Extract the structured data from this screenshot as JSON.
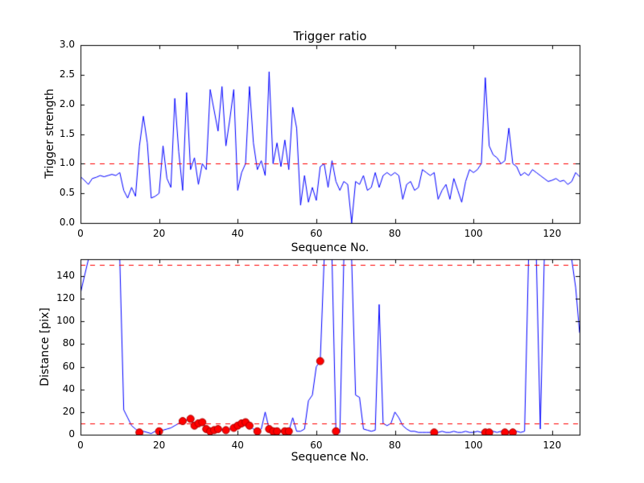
{
  "figure": {
    "background": "#ffffff",
    "line_color": "#0000ff",
    "dashed_color": "#ff0000",
    "marker_face": "#ff0000",
    "marker_edge": "#aa0000",
    "frame_color": "#000000"
  },
  "chart_data": [
    {
      "type": "line",
      "title": "Trigger ratio",
      "xlabel": "Sequence No.",
      "ylabel": "Trigger strength",
      "xlim": [
        0,
        127
      ],
      "ylim": [
        0,
        3.0
      ],
      "xticks": [
        0,
        20,
        40,
        60,
        80,
        100,
        120
      ],
      "xtick_labels": [
        "0",
        "20",
        "40",
        "60",
        "80",
        "100",
        "120"
      ],
      "yticks": [
        0.0,
        0.5,
        1.0,
        1.5,
        2.0,
        2.5,
        3.0
      ],
      "ytick_labels": [
        "0.0",
        "0.5",
        "1.0",
        "1.5",
        "2.0",
        "2.5",
        "3.0"
      ],
      "hlines": [
        1.0
      ],
      "legend": "none",
      "grid": false,
      "series": [
        {
          "name": "trigger-strength",
          "values": [
            0.78,
            0.72,
            0.65,
            0.75,
            0.77,
            0.8,
            0.78,
            0.8,
            0.82,
            0.8,
            0.85,
            0.55,
            0.42,
            0.6,
            0.45,
            1.3,
            1.8,
            1.35,
            0.42,
            0.45,
            0.5,
            1.3,
            0.75,
            0.6,
            2.1,
            1.2,
            0.55,
            2.2,
            0.9,
            1.1,
            0.65,
            1.0,
            0.9,
            2.25,
            1.9,
            1.55,
            2.3,
            1.3,
            1.75,
            2.25,
            0.55,
            0.85,
            1.0,
            2.3,
            1.35,
            0.9,
            1.05,
            0.8,
            2.55,
            1.0,
            1.35,
            0.95,
            1.4,
            0.9,
            1.95,
            1.6,
            0.3,
            0.8,
            0.35,
            0.6,
            0.38,
            0.95,
            1.0,
            0.6,
            1.05,
            0.7,
            0.55,
            0.7,
            0.65,
            0.0,
            0.7,
            0.65,
            0.8,
            0.55,
            0.6,
            0.85,
            0.6,
            0.8,
            0.85,
            0.8,
            0.85,
            0.8,
            0.4,
            0.65,
            0.7,
            0.55,
            0.6,
            0.9,
            0.85,
            0.8,
            0.85,
            0.4,
            0.55,
            0.65,
            0.4,
            0.75,
            0.55,
            0.35,
            0.7,
            0.9,
            0.85,
            0.9,
            1.0,
            2.45,
            1.3,
            1.15,
            1.1,
            1.0,
            1.05,
            1.6,
            1.0,
            0.95,
            0.8,
            0.85,
            0.8,
            0.9,
            0.85,
            0.8,
            0.75,
            0.7,
            0.72,
            0.75,
            0.7,
            0.72,
            0.65,
            0.7,
            0.85,
            0.78
          ]
        }
      ],
      "markers": []
    },
    {
      "type": "line",
      "title": "",
      "xlabel": "Sequence No.",
      "ylabel": "Distance [pix]",
      "xlim": [
        0,
        127
      ],
      "ylim": [
        0,
        155
      ],
      "xticks": [
        0,
        20,
        40,
        60,
        80,
        100,
        120
      ],
      "xtick_labels": [
        "0",
        "20",
        "40",
        "60",
        "80",
        "100",
        "120"
      ],
      "yticks": [
        0,
        20,
        40,
        60,
        80,
        100,
        120,
        140
      ],
      "ytick_labels": [
        "0",
        "20",
        "40",
        "60",
        "80",
        "100",
        "120",
        "140"
      ],
      "hlines": [
        150,
        10
      ],
      "legend": "none",
      "grid": false,
      "series": [
        {
          "name": "distance",
          "values": [
            125,
            140,
            155,
            155,
            155,
            155,
            155,
            155,
            155,
            155,
            155,
            22,
            15,
            8,
            5,
            2,
            3,
            2,
            1,
            3,
            3,
            4,
            5,
            6,
            8,
            10,
            12,
            13,
            14,
            8,
            10,
            11,
            5,
            3,
            4,
            5,
            4,
            4,
            5,
            6,
            8,
            10,
            11,
            8,
            5,
            3,
            5,
            20,
            5,
            3,
            3,
            3,
            3,
            3,
            15,
            3,
            3,
            5,
            30,
            35,
            60,
            65,
            155,
            155,
            155,
            3,
            2,
            155,
            155,
            155,
            35,
            33,
            5,
            4,
            3,
            4,
            115,
            10,
            8,
            10,
            20,
            15,
            8,
            5,
            3,
            3,
            2,
            2,
            2,
            2,
            2,
            2,
            3,
            2,
            2,
            3,
            2,
            2,
            3,
            2,
            2,
            3,
            2,
            2,
            2,
            3,
            2,
            3,
            2,
            3,
            2,
            3,
            2,
            3,
            155,
            155,
            155,
            5,
            155,
            155,
            155,
            155,
            155,
            155,
            155,
            155,
            130,
            90
          ]
        }
      ],
      "markers": [
        [
          15,
          2
        ],
        [
          20,
          3
        ],
        [
          26,
          12
        ],
        [
          28,
          14
        ],
        [
          29,
          8
        ],
        [
          30,
          10
        ],
        [
          31,
          11
        ],
        [
          32,
          5
        ],
        [
          33,
          3
        ],
        [
          34,
          4
        ],
        [
          35,
          5
        ],
        [
          37,
          4
        ],
        [
          39,
          6
        ],
        [
          40,
          8
        ],
        [
          41,
          10
        ],
        [
          42,
          11
        ],
        [
          43,
          8
        ],
        [
          45,
          3
        ],
        [
          48,
          5
        ],
        [
          49,
          3
        ],
        [
          50,
          3
        ],
        [
          52,
          3
        ],
        [
          53,
          3
        ],
        [
          61,
          65
        ],
        [
          65,
          3
        ],
        [
          90,
          2
        ],
        [
          103,
          2
        ],
        [
          104,
          2
        ],
        [
          108,
          2
        ],
        [
          110,
          2
        ]
      ]
    }
  ]
}
